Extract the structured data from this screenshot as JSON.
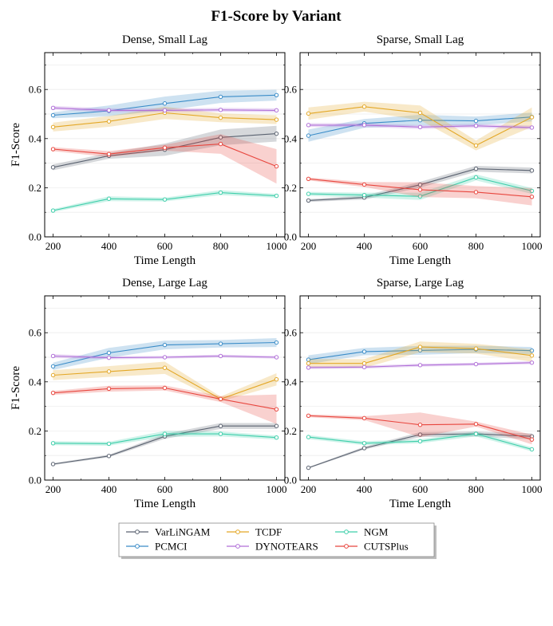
{
  "title": "F1-Score  by Variant",
  "colors": {
    "VarLiNGAM": "#5a6270",
    "PCMCI": "#3a8cc8",
    "TCDF": "#e3a726",
    "DYNOTEARS": "#b06fd8",
    "NGM": "#3fcfab",
    "CUTSPlus": "#e8463e"
  },
  "legend": [
    "VarLiNGAM",
    "TCDF",
    "NGM",
    "PCMCI",
    "DYNOTEARS",
    "CUTSPlus"
  ],
  "chart_data": [
    {
      "type": "line",
      "title": "Dense, Small Lag",
      "xlabel": "Time Length",
      "ylabel": "F1-Score",
      "x": [
        200,
        400,
        600,
        800,
        1000
      ],
      "xticks": [
        "200",
        "400",
        "600",
        "800",
        "1000"
      ],
      "yticks": [
        "0.0",
        "0.2",
        "0.4",
        "0.6"
      ],
      "xlim": [
        170,
        1030
      ],
      "ylim": [
        0,
        0.75
      ],
      "series": [
        {
          "name": "VarLiNGAM",
          "values": [
            0.283,
            0.33,
            0.355,
            0.405,
            0.42
          ],
          "band": [
            0.012,
            0.012,
            0.025,
            0.032,
            0.032
          ]
        },
        {
          "name": "PCMCI",
          "values": [
            0.495,
            0.513,
            0.543,
            0.57,
            0.577
          ],
          "band": [
            0.012,
            0.022,
            0.028,
            0.025,
            0.022
          ]
        },
        {
          "name": "TCDF",
          "values": [
            0.447,
            0.47,
            0.505,
            0.485,
            0.477
          ],
          "band": [
            0.018,
            0.022,
            0.025,
            0.018,
            0.018
          ]
        },
        {
          "name": "DYNOTEARS",
          "values": [
            0.525,
            0.515,
            0.515,
            0.517,
            0.515
          ],
          "band": [
            0.008,
            0.008,
            0.008,
            0.008,
            0.008
          ]
        },
        {
          "name": "NGM",
          "values": [
            0.107,
            0.155,
            0.152,
            0.18,
            0.167
          ],
          "band": [
            0.006,
            0.01,
            0.008,
            0.01,
            0.008
          ]
        },
        {
          "name": "CUTSPlus",
          "values": [
            0.357,
            0.337,
            0.363,
            0.378,
            0.287
          ],
          "band": [
            0.008,
            0.012,
            0.012,
            0.04,
            0.07
          ]
        }
      ]
    },
    {
      "type": "line",
      "title": "Sparse, Small Lag",
      "xlabel": "Time Length",
      "ylabel": "",
      "x": [
        200,
        400,
        600,
        800,
        1000
      ],
      "xticks": [
        "200",
        "400",
        "600",
        "800",
        "1000"
      ],
      "yticks": [
        "0.0",
        "0.2",
        "0.4",
        "0.6"
      ],
      "xlim": [
        170,
        1030
      ],
      "ylim": [
        0,
        0.75
      ],
      "series": [
        {
          "name": "VarLiNGAM",
          "values": [
            0.148,
            0.16,
            0.212,
            0.277,
            0.27
          ],
          "band": [
            0.006,
            0.008,
            0.012,
            0.012,
            0.012
          ]
        },
        {
          "name": "PCMCI",
          "values": [
            0.412,
            0.462,
            0.475,
            0.472,
            0.488
          ],
          "band": [
            0.025,
            0.018,
            0.022,
            0.018,
            0.018
          ]
        },
        {
          "name": "TCDF",
          "values": [
            0.502,
            0.53,
            0.505,
            0.372,
            0.487
          ],
          "band": [
            0.025,
            0.02,
            0.03,
            0.02,
            0.04
          ]
        },
        {
          "name": "DYNOTEARS",
          "values": [
            0.455,
            0.455,
            0.447,
            0.452,
            0.445
          ],
          "band": [
            0.008,
            0.008,
            0.008,
            0.008,
            0.008
          ]
        },
        {
          "name": "NGM",
          "values": [
            0.175,
            0.17,
            0.165,
            0.242,
            0.187
          ],
          "band": [
            0.008,
            0.01,
            0.015,
            0.012,
            0.012
          ]
        },
        {
          "name": "CUTSPlus",
          "values": [
            0.236,
            0.213,
            0.192,
            0.182,
            0.163
          ],
          "band": [
            0.006,
            0.01,
            0.03,
            0.025,
            0.035
          ]
        }
      ]
    },
    {
      "type": "line",
      "title": "Dense, Large Lag",
      "xlabel": "Time Length",
      "ylabel": "F1-Score",
      "x": [
        200,
        400,
        600,
        800,
        1000
      ],
      "xticks": [
        "200",
        "400",
        "600",
        "800",
        "1000"
      ],
      "yticks": [
        "0.0",
        "0.2",
        "0.4",
        "0.6"
      ],
      "xlim": [
        170,
        1030
      ],
      "ylim": [
        0,
        0.75
      ],
      "series": [
        {
          "name": "VarLiNGAM",
          "values": [
            0.065,
            0.098,
            0.178,
            0.22,
            0.22
          ],
          "band": [
            0.004,
            0.005,
            0.01,
            0.012,
            0.012
          ]
        },
        {
          "name": "PCMCI",
          "values": [
            0.463,
            0.518,
            0.55,
            0.555,
            0.56
          ],
          "band": [
            0.015,
            0.02,
            0.018,
            0.015,
            0.018
          ]
        },
        {
          "name": "TCDF",
          "values": [
            0.427,
            0.442,
            0.457,
            0.33,
            0.41
          ],
          "band": [
            0.02,
            0.022,
            0.025,
            0.01,
            0.025
          ]
        },
        {
          "name": "DYNOTEARS",
          "values": [
            0.505,
            0.498,
            0.5,
            0.505,
            0.5
          ],
          "band": [
            0.008,
            0.006,
            0.006,
            0.006,
            0.006
          ]
        },
        {
          "name": "NGM",
          "values": [
            0.15,
            0.148,
            0.188,
            0.188,
            0.173
          ],
          "band": [
            0.008,
            0.008,
            0.012,
            0.01,
            0.008
          ]
        },
        {
          "name": "CUTSPlus",
          "values": [
            0.355,
            0.372,
            0.375,
            0.33,
            0.288
          ],
          "band": [
            0.008,
            0.012,
            0.01,
            0.012,
            0.06
          ]
        }
      ]
    },
    {
      "type": "line",
      "title": "Sparse, Large Lag",
      "xlabel": "Time Length",
      "ylabel": "",
      "x": [
        200,
        400,
        600,
        800,
        1000
      ],
      "xticks": [
        "200",
        "400",
        "600",
        "800",
        "1000"
      ],
      "yticks": [
        "0.0",
        "0.2",
        "0.4",
        "0.6"
      ],
      "xlim": [
        170,
        1030
      ],
      "ylim": [
        0,
        0.75
      ],
      "series": [
        {
          "name": "VarLiNGAM",
          "values": [
            0.05,
            0.13,
            0.185,
            0.188,
            0.178
          ],
          "band": [
            0.003,
            0.006,
            0.01,
            0.01,
            0.012
          ]
        },
        {
          "name": "PCMCI",
          "values": [
            0.49,
            0.523,
            0.528,
            0.532,
            0.527
          ],
          "band": [
            0.018,
            0.015,
            0.018,
            0.015,
            0.015
          ]
        },
        {
          "name": "TCDF",
          "values": [
            0.475,
            0.475,
            0.542,
            0.535,
            0.507
          ],
          "band": [
            0.018,
            0.018,
            0.022,
            0.02,
            0.025
          ]
        },
        {
          "name": "DYNOTEARS",
          "values": [
            0.458,
            0.46,
            0.468,
            0.472,
            0.478
          ],
          "band": [
            0.006,
            0.006,
            0.006,
            0.006,
            0.006
          ]
        },
        {
          "name": "NGM",
          "values": [
            0.175,
            0.15,
            0.158,
            0.188,
            0.125
          ],
          "band": [
            0.008,
            0.008,
            0.008,
            0.01,
            0.008
          ]
        },
        {
          "name": "CUTSPlus",
          "values": [
            0.262,
            0.252,
            0.225,
            0.228,
            0.165
          ],
          "band": [
            0.006,
            0.008,
            0.05,
            0.01,
            0.02
          ]
        }
      ]
    }
  ]
}
